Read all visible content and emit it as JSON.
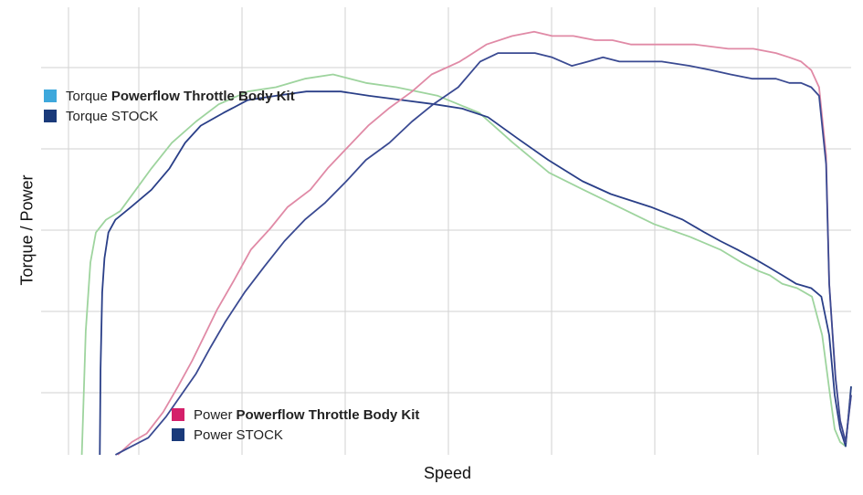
{
  "chart_data": {
    "type": "line",
    "title": "",
    "xlabel": "Speed",
    "ylabel": "Torque / Power",
    "xlim": [
      0,
      100
    ],
    "ylim": [
      0,
      100
    ],
    "grid": true,
    "ticks_shown": false,
    "legends": [
      {
        "placement": "top-left",
        "entries": [
          {
            "series_index": 0,
            "label_prefix": "Torque",
            "label_main": "Powerflow Throttle Body Kit",
            "swatch_color": "#3ea8dc"
          },
          {
            "series_index": 1,
            "label_prefix": "Torque",
            "label_main": "STOCK",
            "swatch_color": "#1a3a7a"
          }
        ]
      },
      {
        "placement": "bottom-left",
        "entries": [
          {
            "series_index": 2,
            "label_prefix": "Power",
            "label_main": "Powerflow Throttle Body Kit",
            "swatch_color": "#d4206a"
          },
          {
            "series_index": 3,
            "label_prefix": "Power",
            "label_main": "STOCK",
            "swatch_color": "#1a3a7a"
          }
        ]
      }
    ],
    "series": [
      {
        "color": "#9ed49e",
        "x": [
          1.7,
          2.2,
          2.8,
          3.5,
          4.8,
          6.6,
          8.6,
          10.6,
          13.2,
          16.3,
          19.2,
          22.9,
          26.5,
          30.2,
          33.8,
          38.0,
          41.9,
          47.2,
          52.5,
          56.8,
          61.4,
          65.8,
          70.3,
          74.8,
          79.4,
          83.3,
          86.0,
          88.2,
          89.6,
          91.2,
          93.1,
          95.0,
          96.3,
          97.3,
          97.9,
          98.6,
          99.3,
          100
        ],
        "y": [
          0,
          29,
          45,
          52,
          55,
          57,
          62,
          67,
          73,
          78,
          82,
          85,
          86,
          88,
          89,
          87,
          86,
          84,
          80,
          73,
          66,
          62,
          58,
          54,
          51,
          48,
          45,
          43,
          42,
          40,
          39,
          37,
          28,
          14,
          6,
          3,
          2,
          16
        ]
      },
      {
        "color": "#2a3f88",
        "x": [
          4.0,
          4.1,
          4.3,
          4.6,
          5.1,
          6.0,
          8.0,
          10.6,
          12.9,
          14.9,
          16.9,
          19.8,
          22.9,
          26.5,
          30.4,
          34.8,
          38.4,
          42.7,
          46.8,
          50.3,
          53.6,
          57.4,
          61.3,
          65.7,
          69.3,
          74.4,
          78.5,
          81.3,
          83.3,
          85.5,
          87.5,
          89.4,
          91.2,
          93.0,
          94.9,
          96.2,
          97.2,
          97.9,
          98.6,
          99.3,
          100
        ],
        "y": [
          0,
          20,
          38,
          46,
          52,
          55,
          58,
          62,
          67,
          73,
          77,
          80,
          83,
          84,
          85,
          85,
          84,
          83,
          82,
          81,
          79,
          74,
          69,
          64,
          61,
          58,
          55,
          52,
          50,
          48,
          46,
          44,
          42,
          40,
          39,
          37,
          28,
          14,
          6,
          2,
          16
        ]
      },
      {
        "color": "#e08aa6",
        "x": [
          6.3,
          8.1,
          10.0,
          12.1,
          14.0,
          15.8,
          17.4,
          19.0,
          21.2,
          23.3,
          25.8,
          28.0,
          30.9,
          33.1,
          35.7,
          38.3,
          40.9,
          43.9,
          46.4,
          50.0,
          53.4,
          56.7,
          59.5,
          61.8,
          64.5,
          67.3,
          69.5,
          71.9,
          75.5,
          80.0,
          84.3,
          87.5,
          90.4,
          92.1,
          93.6,
          94.9,
          95.9,
          96.8,
          97.2,
          98.0,
          98.6,
          99.3,
          100
        ],
        "y": [
          0,
          3,
          5,
          10,
          16,
          22,
          28,
          34,
          41,
          48,
          53,
          58,
          62,
          67,
          72,
          77,
          81,
          85,
          89,
          92,
          96,
          98,
          99,
          98,
          98,
          97,
          97,
          96,
          96,
          96,
          95,
          95,
          94,
          93,
          92,
          90,
          86,
          70,
          40,
          18,
          8,
          3,
          14
        ]
      },
      {
        "color": "#3a4a92",
        "x": [
          6.0,
          8.1,
          10.2,
          12.5,
          14.4,
          16.3,
          18.1,
          20.0,
          22.5,
          25.0,
          27.6,
          30.2,
          32.8,
          35.5,
          38.0,
          41.0,
          43.9,
          46.6,
          49.8,
          52.6,
          54.9,
          57.4,
          59.6,
          61.8,
          64.3,
          66.4,
          68.3,
          70.4,
          73.0,
          75.8,
          79.4,
          82.1,
          84.6,
          87.4,
          90.4,
          92.1,
          93.6,
          94.9,
          95.9,
          96.8,
          97.2,
          98.0,
          98.6,
          99.3,
          100
        ],
        "y": [
          0,
          2,
          4,
          9,
          14,
          19,
          25,
          31,
          38,
          44,
          50,
          55,
          59,
          64,
          69,
          73,
          78,
          82,
          86,
          92,
          94,
          94,
          94,
          93,
          91,
          92,
          93,
          92,
          92,
          92,
          91,
          90,
          89,
          88,
          88,
          87,
          87,
          86,
          84,
          68,
          40,
          18,
          8,
          3,
          14
        ]
      }
    ]
  }
}
